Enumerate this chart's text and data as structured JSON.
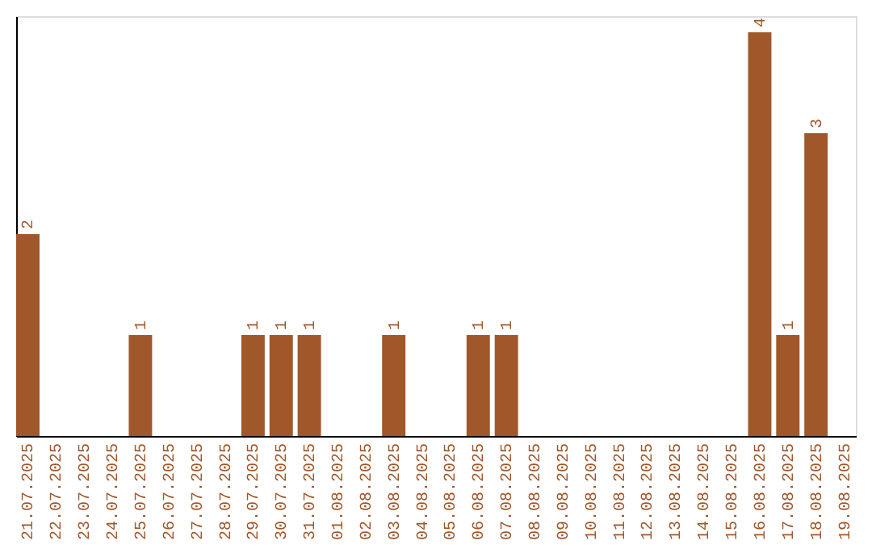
{
  "chart_data": {
    "type": "bar",
    "categories": [
      "21.07.2025",
      "22.07.2025",
      "23.07.2025",
      "24.07.2025",
      "25.07.2025",
      "26.07.2025",
      "27.07.2025",
      "28.07.2025",
      "29.07.2025",
      "30.07.2025",
      "31.07.2025",
      "01.08.2025",
      "02.08.2025",
      "03.08.2025",
      "04.08.2025",
      "05.08.2025",
      "06.08.2025",
      "07.08.2025",
      "08.08.2025",
      "09.08.2025",
      "10.08.2025",
      "11.08.2025",
      "12.08.2025",
      "13.08.2025",
      "14.08.2025",
      "15.08.2025",
      "16.08.2025",
      "17.08.2025",
      "18.08.2025",
      "19.08.2025"
    ],
    "values": [
      2,
      0,
      0,
      0,
      1,
      0,
      0,
      0,
      1,
      1,
      1,
      0,
      0,
      1,
      0,
      0,
      1,
      1,
      0,
      0,
      0,
      0,
      0,
      0,
      0,
      0,
      4,
      1,
      3,
      0
    ],
    "value_labels": [
      "2",
      null,
      null,
      null,
      "1",
      null,
      null,
      null,
      "1",
      "1",
      "1",
      null,
      null,
      "1",
      null,
      null,
      "1",
      "1",
      null,
      null,
      null,
      null,
      null,
      null,
      null,
      null,
      "4",
      "1",
      "3",
      null
    ],
    "color": "#a0572a",
    "tick_labels": "x",
    "grid": false
  }
}
